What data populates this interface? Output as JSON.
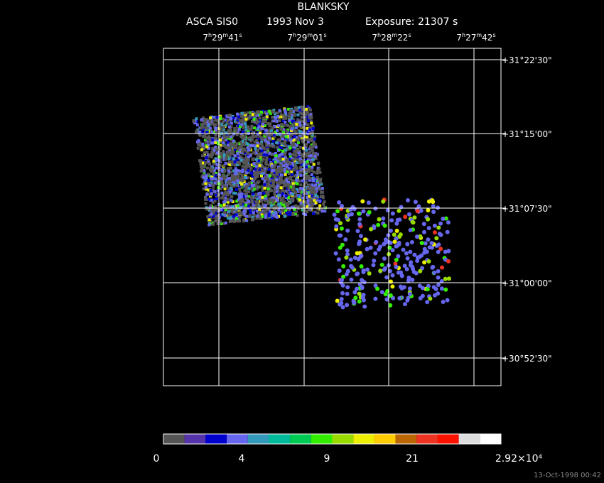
{
  "header": {
    "title": "BLANKSKY",
    "instrument": "ASCA SIS0",
    "date": "1993 Nov  3",
    "exposure": "Exposure: 21307 s"
  },
  "ra_labels": [
    [
      "7",
      "h",
      "29",
      "m",
      "41",
      "s"
    ],
    [
      "7",
      "h",
      "29",
      "m",
      "01",
      "s"
    ],
    [
      "7",
      "h",
      "28",
      "m",
      "22",
      "s"
    ],
    [
      "7",
      "h",
      "27",
      "m",
      "42",
      "s"
    ]
  ],
  "dec_labels": [
    "+31°22'30\"",
    "+31°15'00\"",
    "+31°07'30\"",
    "+31°00'00\"",
    "+30°52'30\""
  ],
  "colorbar": {
    "colors": [
      "#555555",
      "#5533aa",
      "#0000cc",
      "#6666ee",
      "#3399bb",
      "#00bb99",
      "#00cc55",
      "#33ee00",
      "#99dd00",
      "#eeee00",
      "#ffcc00",
      "#bb6600",
      "#ee3322",
      "#ff1100",
      "#dddddd",
      "#ffffff"
    ],
    "labels": [
      "0",
      "4",
      "9",
      "21",
      "2.92×10⁴"
    ]
  },
  "footer": "13-Oct-1998 00:42"
}
